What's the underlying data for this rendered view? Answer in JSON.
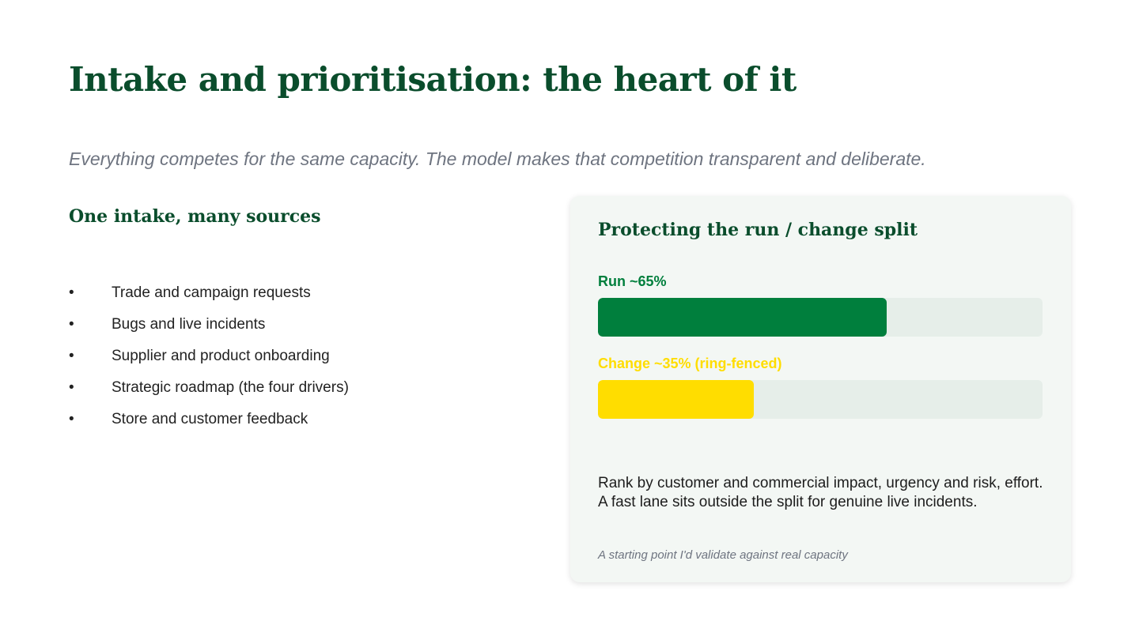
{
  "slide": {
    "title": "Intake and prioritisation: the heart of it",
    "subtitle": "Everything competes for the same capacity. The model makes that competition transparent and deliberate."
  },
  "left": {
    "heading": "One intake, many sources",
    "bullet_glyph": "•",
    "items": [
      "Trade and campaign requests",
      "Bugs and live incidents",
      "Supplier and product onboarding",
      "Strategic roadmap (the four drivers)",
      "Store and customer feedback"
    ]
  },
  "card": {
    "heading": "Protecting the run / change split",
    "bars": [
      {
        "label": "Run  ~65%",
        "value": 0.65,
        "color": "#007f3d"
      },
      {
        "label": "Change  ~35%  (ring-fenced)",
        "value": 0.35,
        "color": "#ffdd00"
      }
    ],
    "body": "Rank by customer and commercial impact, urgency and risk, effort. A fast lane sits outside the split for genuine live incidents.",
    "note": "A starting point I'd validate against real capacity"
  },
  "colors": {
    "heading_green": "#0a4d2c",
    "run_green": "#007f3d",
    "change_yellow": "#ffdd00",
    "track": "#e6eee9",
    "card_bg": "#f3f7f4"
  }
}
